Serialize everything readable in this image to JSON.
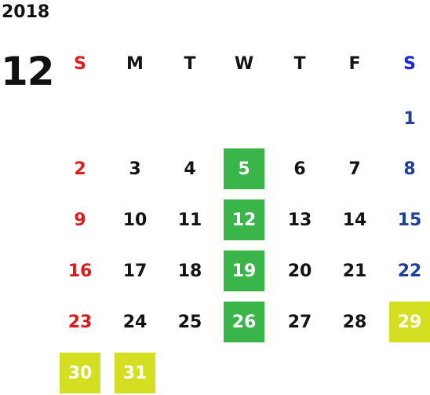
{
  "calendar": {
    "year": "2018",
    "month": "12",
    "weekdays": [
      "S",
      "M",
      "T",
      "W",
      "T",
      "F",
      "S"
    ],
    "first_weekday_index": 6,
    "days_in_month": 31,
    "highlight_colors": {
      "green": "#39b54a",
      "yellow": "#d4df22"
    },
    "day_colors": {
      "sunday": "#dd1c1c",
      "saturday": "#1b3f9a",
      "saturday_header": "#1a22dd",
      "weekday": "#141414"
    },
    "highlights": [
      {
        "day": 5,
        "color": "green"
      },
      {
        "day": 12,
        "color": "green"
      },
      {
        "day": 19,
        "color": "green"
      },
      {
        "day": 26,
        "color": "green"
      },
      {
        "day": 29,
        "color": "yellow"
      },
      {
        "day": 30,
        "color": "yellow"
      },
      {
        "day": 31,
        "color": "yellow"
      }
    ]
  }
}
